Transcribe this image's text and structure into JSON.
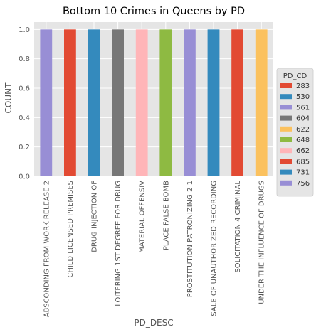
{
  "chart_data": {
    "type": "bar",
    "title": "Bottom 10 Crimes in Queens by PD",
    "xlabel": "PD_DESC",
    "ylabel": "COUNT",
    "ylim": [
      0,
      1.05
    ],
    "yticks": [
      "0.0",
      "0.2",
      "0.4",
      "0.6",
      "0.8",
      "1.0"
    ],
    "grid": true,
    "legend": {
      "title": "PD_CD",
      "placement": "right"
    },
    "categories": [
      "ABSCONDING FROM WORK RELEASE 2",
      "CHILD LICENSED PREMISES",
      "DRUG  INJECTION OF",
      "LOITERING 1ST DEGREE FOR DRUG",
      "MATERIAL        OFFENSIV",
      "PLACE FALSE BOMB",
      "PROSTITUTION  PATRONIZING 2  1",
      "SALE OF UNAUTHORIZED RECORDING",
      "SOLICITATION 4  CRIMINAL",
      "UNDER THE INFLUENCE OF DRUGS"
    ],
    "series": [
      {
        "name": "283",
        "color": "#E24A33",
        "values": [
          0,
          0,
          0,
          0,
          0,
          0,
          0,
          0,
          0,
          0
        ]
      },
      {
        "name": "530",
        "color": "#348ABD",
        "values": [
          0,
          0,
          0,
          0,
          0,
          0,
          0,
          0,
          0,
          0
        ]
      },
      {
        "name": "561",
        "color": "#988ED5",
        "values": [
          0,
          0,
          0,
          0,
          0,
          0,
          0,
          0,
          0,
          0
        ]
      },
      {
        "name": "604",
        "color": "#777777",
        "values": [
          0,
          0,
          0,
          1,
          0,
          0,
          0,
          0,
          0,
          0
        ]
      },
      {
        "name": "622",
        "color": "#FBC15E",
        "values": [
          0,
          0,
          0,
          0,
          0,
          0,
          0,
          0,
          0,
          1
        ]
      },
      {
        "name": "648",
        "color": "#8EBA42",
        "values": [
          0,
          0,
          0,
          0,
          0,
          1,
          0,
          0,
          0,
          0
        ]
      },
      {
        "name": "662",
        "color": "#FFB5B8",
        "values": [
          0,
          0,
          0,
          0,
          1,
          0,
          0,
          0,
          0,
          0
        ]
      },
      {
        "name": "685",
        "color": "#E24A33",
        "values": [
          0,
          1,
          0,
          0,
          0,
          0,
          0,
          0,
          1,
          0
        ]
      },
      {
        "name": "731",
        "color": "#348ABD",
        "values": [
          0,
          0,
          1,
          0,
          0,
          0,
          0,
          1,
          0,
          0
        ]
      },
      {
        "name": "756",
        "color": "#988ED5",
        "values": [
          1,
          0,
          0,
          0,
          0,
          0,
          1,
          0,
          0,
          0
        ]
      }
    ]
  }
}
